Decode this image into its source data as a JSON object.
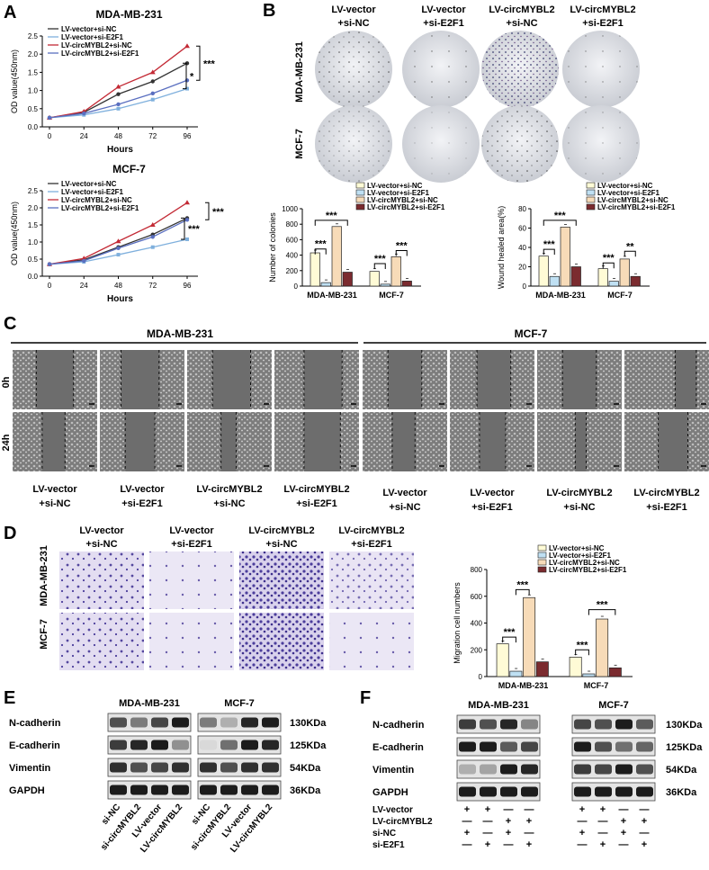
{
  "panels": [
    "A",
    "B",
    "C",
    "D",
    "E",
    "F"
  ],
  "colors": {
    "vector_nc": "#333333",
    "vector_e2f1": "#7fb0dd",
    "circ_nc": "#c32a35",
    "circ_e2f1": "#5a6fc0",
    "bar_nc": "#fffbd6",
    "bar_e2f1": "#bfe0f3",
    "bar_circ_nc": "#f7dbb8",
    "bar_circ_e2f1": "#7b2b2f"
  },
  "legend4": [
    "LV-vector+si-NC",
    "LV-vector+si-E2F1",
    "LV-circMYBL2+si-NC",
    "LV-circMYBL2+si-E2F1"
  ],
  "stars": {
    "s3": "***",
    "s2": "**",
    "s1": "*"
  },
  "chart_data": [
    {
      "type": "line",
      "title": "MDA-MB-231",
      "xlabel": "Hours",
      "ylabel": "OD value(450nm)",
      "x": [
        0,
        24,
        48,
        72,
        96
      ],
      "ylim": [
        0,
        2.5
      ],
      "yticks": [
        "0.0",
        "0.5",
        "1.0",
        "1.5",
        "2.0",
        "2.5"
      ],
      "series": [
        {
          "name": "LV-vector+si-NC",
          "values": [
            0.25,
            0.4,
            0.9,
            1.25,
            1.75
          ]
        },
        {
          "name": "LV-vector+si-E2F1",
          "values": [
            0.25,
            0.33,
            0.5,
            0.75,
            1.05
          ]
        },
        {
          "name": "LV-circMYBL2+si-NC",
          "values": [
            0.25,
            0.42,
            1.1,
            1.5,
            2.22
          ]
        },
        {
          "name": "LV-circMYBL2+si-E2F1",
          "values": [
            0.25,
            0.37,
            0.62,
            0.92,
            1.28
          ]
        }
      ]
    },
    {
      "type": "line",
      "title": "MCF-7",
      "xlabel": "Hours",
      "ylabel": "OD value(450nm)",
      "x": [
        0,
        24,
        48,
        72,
        96
      ],
      "ylim": [
        0,
        2.5
      ],
      "yticks": [
        "0.0",
        "0.5",
        "1.0",
        "1.5",
        "2.0",
        "2.5"
      ],
      "series": [
        {
          "name": "LV-vector+si-NC",
          "values": [
            0.35,
            0.48,
            0.85,
            1.22,
            1.7
          ]
        },
        {
          "name": "LV-vector+si-E2F1",
          "values": [
            0.35,
            0.42,
            0.63,
            0.85,
            1.08
          ]
        },
        {
          "name": "LV-circMYBL2+si-NC",
          "values": [
            0.35,
            0.52,
            1.02,
            1.5,
            2.15
          ]
        },
        {
          "name": "LV-circMYBL2+si-E2F1",
          "values": [
            0.35,
            0.45,
            0.82,
            1.15,
            1.65
          ]
        }
      ]
    },
    {
      "type": "bar",
      "ylabel": "Number of colonies",
      "categories": [
        "MDA-MB-231",
        "MCF-7"
      ],
      "ylim": [
        0,
        1000
      ],
      "yticks": [
        "0",
        "200",
        "400",
        "600",
        "800",
        "1000"
      ],
      "series": [
        {
          "name": "LV-vector+si-NC",
          "values": [
            430,
            190
          ]
        },
        {
          "name": "LV-vector+si-E2F1",
          "values": [
            45,
            25
          ]
        },
        {
          "name": "LV-circMYBL2+si-NC",
          "values": [
            770,
            380
          ]
        },
        {
          "name": "LV-circMYBL2+si-E2F1",
          "values": [
            180,
            65
          ]
        }
      ]
    },
    {
      "type": "bar",
      "ylabel": "Wound healed area(%)",
      "categories": [
        "MDA-MB-231",
        "MCF-7"
      ],
      "ylim": [
        0,
        80
      ],
      "yticks": [
        "0",
        "20",
        "40",
        "60",
        "80"
      ],
      "series": [
        {
          "name": "LV-vector+si-NC",
          "values": [
            31,
            18
          ]
        },
        {
          "name": "LV-vector+si-E2F1",
          "values": [
            10,
            5
          ]
        },
        {
          "name": "LV-circMYBL2+si-NC",
          "values": [
            61,
            28
          ]
        },
        {
          "name": "LV-circMYBL2+si-E2F1",
          "values": [
            20,
            10
          ]
        }
      ]
    },
    {
      "type": "bar",
      "ylabel": "Migration cell numbers",
      "categories": [
        "MDA-MB-231",
        "MCF-7"
      ],
      "ylim": [
        0,
        800
      ],
      "yticks": [
        "0",
        "200",
        "400",
        "600",
        "800"
      ],
      "series": [
        {
          "name": "LV-vector+si-NC",
          "values": [
            245,
            145
          ]
        },
        {
          "name": "LV-vector+si-E2F1",
          "values": [
            40,
            20
          ]
        },
        {
          "name": "LV-circMYBL2+si-NC",
          "values": [
            590,
            430
          ]
        },
        {
          "name": "LV-circMYBL2+si-E2F1",
          "values": [
            110,
            65
          ]
        }
      ]
    }
  ],
  "panelB": {
    "cols": [
      "LV-vector",
      "+si-NC",
      "LV-vector",
      "+si-E2F1",
      "LV-circMYBL2",
      "+si-NC",
      "LV-circMYBL2",
      "+si-E2F1"
    ],
    "rows": [
      "MDA-MB-231",
      "MCF-7"
    ]
  },
  "panelC": {
    "groups": [
      "MDA-MB-231",
      "MCF-7"
    ],
    "rows": [
      "0h",
      "24h"
    ],
    "cols": [
      "LV-vector",
      "+si-NC",
      "LV-vector",
      "+si-E2F1",
      "LV-circMYBL2",
      "+si-NC",
      "LV-circMYBL2",
      "+si-E2F1"
    ]
  },
  "panelD": {
    "cols": [
      "LV-vector",
      "+si-NC",
      "LV-vector",
      "+si-E2F1",
      "LV-circMYBL2",
      "+si-NC",
      "LV-circMYBL2",
      "+si-E2F1"
    ],
    "rows": [
      "MDA-MB-231",
      "MCF-7"
    ]
  },
  "panelE": {
    "groups": [
      "MDA-MB-231",
      "MCF-7"
    ],
    "proteins": [
      "N-cadherin",
      "E-cadherin",
      "Vimentin",
      "GAPDH"
    ],
    "sizes": [
      "130KDa",
      "125KDa",
      "54KDa",
      "36KDa"
    ],
    "lanes": [
      "si-NC",
      "si-circMYBL2",
      "LV-vector",
      "LV-circMYBL2"
    ]
  },
  "panelF": {
    "groups": [
      "MDA-MB-231",
      "MCF-7"
    ],
    "proteins": [
      "N-cadherin",
      "E-cadherin",
      "Vimentin",
      "GAPDH"
    ],
    "sizes": [
      "130KDa",
      "125KDa",
      "54KDa",
      "36KDa"
    ],
    "conditions": [
      "LV-vector",
      "LV-circMYBL2",
      "si-NC",
      "si-E2F1"
    ],
    "plus": "+",
    "minus": "—",
    "matrix": [
      [
        "+",
        "+",
        "—",
        "—"
      ],
      [
        "—",
        "—",
        "+",
        "+"
      ],
      [
        "+",
        "—",
        "+",
        "—"
      ],
      [
        "—",
        "+",
        "—",
        "+"
      ]
    ]
  }
}
